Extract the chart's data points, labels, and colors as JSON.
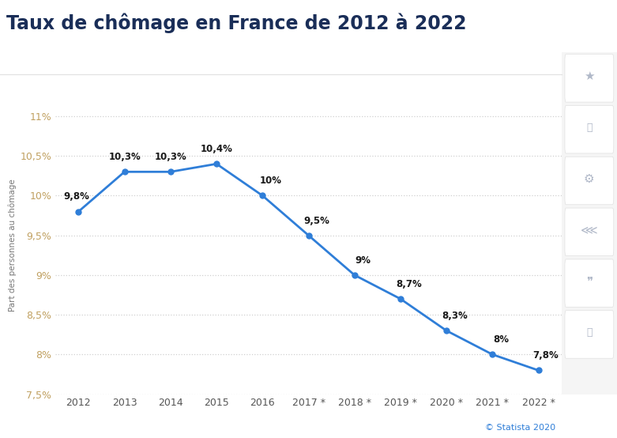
{
  "title": "Taux de chômage en France de 2012 à 2022",
  "ylabel": "Part des personnes au chômage",
  "categories": [
    "2012",
    "2013",
    "2014",
    "2015",
    "2016",
    "2017 *",
    "2018 *",
    "2019 *",
    "2020 *",
    "2021 *",
    "2022 *"
  ],
  "values": [
    9.8,
    10.3,
    10.3,
    10.4,
    10.0,
    9.5,
    9.0,
    8.7,
    8.3,
    8.0,
    7.8
  ],
  "labels": [
    "9,8%",
    "10,3%",
    "10,3%",
    "10,4%",
    "10%",
    "9,5%",
    "9%",
    "8,7%",
    "8,3%",
    "8%",
    "7,8%"
  ],
  "line_color": "#2f7ed8",
  "marker_color": "#2f7ed8",
  "background_color": "#ffffff",
  "plot_bg_color": "#ffffff",
  "grid_color": "#d0d0d0",
  "title_color": "#1a2e58",
  "title_fontsize": 17,
  "label_fontsize": 8.5,
  "tick_fontsize": 9,
  "ylabel_fontsize": 7.5,
  "tick_color": "#c0a060",
  "ylim": [
    7.5,
    11.25
  ],
  "yticks": [
    7.5,
    8.0,
    8.5,
    9.0,
    9.5,
    10.0,
    10.5,
    11.0
  ],
  "ytick_labels": [
    "7,5%",
    "8%",
    "8,5%",
    "9%",
    "9,5%",
    "10%",
    "10,5%",
    "11%"
  ],
  "watermark": "© Statista 2020",
  "watermark_color": "#2f7ed8",
  "watermark_fontsize": 8,
  "label_offsets_x": [
    -0.05,
    0.0,
    0.0,
    0.0,
    0.18,
    0.18,
    0.18,
    0.18,
    0.18,
    0.18,
    0.15
  ],
  "label_offsets_y": [
    0.12,
    0.12,
    0.12,
    0.12,
    0.12,
    0.12,
    0.12,
    0.12,
    0.12,
    0.12,
    0.12
  ]
}
